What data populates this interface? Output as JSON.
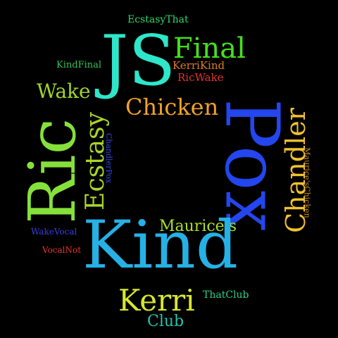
{
  "background": "#000000",
  "words": [
    {
      "id": "ecstasythat",
      "text": "EcstasyThat",
      "color": "#2fd66b"
    },
    {
      "id": "js",
      "text": "JS",
      "color": "#2ee6c9"
    },
    {
      "id": "final",
      "text": "Final",
      "color": "#44e01e"
    },
    {
      "id": "kindfinal",
      "text": "KindFinal",
      "color": "#2fc656"
    },
    {
      "id": "kerrikind",
      "text": "KerriKind",
      "color": "#e07a24"
    },
    {
      "id": "ricwake",
      "text": "RicWake",
      "color": "#e53131"
    },
    {
      "id": "wake",
      "text": "Wake",
      "color": "#9fd62a"
    },
    {
      "id": "chicken",
      "text": "Chicken",
      "color": "#f0a32a"
    },
    {
      "id": "pox",
      "text": "Pox",
      "color": "#2346ee"
    },
    {
      "id": "chandler",
      "text": "Chandler",
      "color": "#f2c12e"
    },
    {
      "id": "ric",
      "text": "Ric",
      "color": "#86e03a"
    },
    {
      "id": "ecstasy",
      "text": "Ecstasy",
      "color": "#a8d52a"
    },
    {
      "id": "chandlerpox",
      "text": "ChandlerPox",
      "color": "#3347dd"
    },
    {
      "id": "maurices",
      "text": "Maurice's",
      "color": "#a8e02a"
    },
    {
      "id": "mauriceschicken",
      "text": "Maurice'sChicken",
      "color": "#c79020"
    },
    {
      "id": "wakevocal",
      "text": "WakeVocal",
      "color": "#3a3ee0"
    },
    {
      "id": "kind",
      "text": "Kind",
      "color": "#25b1e6"
    },
    {
      "id": "vocalnot",
      "text": "VocalNot",
      "color": "#e2342f"
    },
    {
      "id": "thatclub",
      "text": "ThatClub",
      "color": "#2bd08a"
    },
    {
      "id": "kerri",
      "text": "Kerri",
      "color": "#d7e72e"
    },
    {
      "id": "club",
      "text": "Club",
      "color": "#22c6b0"
    }
  ]
}
